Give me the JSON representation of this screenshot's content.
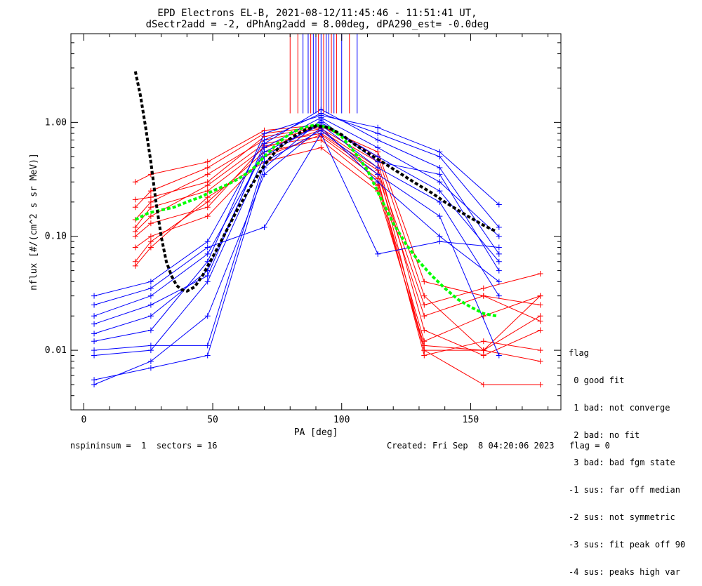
{
  "title_line1": "EPD Electrons EL-B, 2021-08-12/11:45:46 - 11:51:41 UT,",
  "title_line2": "dSectr2add = -2, dPhAng2add = 8.00deg, dPA290_est=  -0.0deg",
  "legend": {
    "title": "flag",
    "items": [
      " 0 good fit",
      " 1 bad: not converge",
      " 2 bad: no fit",
      " 3 bad: bad fgm state",
      "-1 sus: far off median",
      "-2 sus: not symmetric",
      "-3 sus: fit peak off 90",
      "-4 sus: peaks high var"
    ]
  },
  "footer": {
    "left": "nspininsum =  1  sectors = 16",
    "right": "Created: Fri Sep  8 04:20:06 2023   flag = 0"
  },
  "colors": {
    "red": "#ff0000",
    "blue": "#0000ff",
    "green": "#00ff00",
    "black": "#000000"
  },
  "chart_data": {
    "type": "line",
    "xlabel": "PA [deg]",
    "ylabel": "nflux [#/(cm^2 s sr MeV)]",
    "xlim": [
      -5,
      185
    ],
    "ylim": [
      0.003,
      6.0
    ],
    "ylog": true,
    "xticks": [
      0,
      50,
      100,
      150
    ],
    "yticks": [
      0.01,
      0.1,
      1.0
    ],
    "ytick_labels": [
      "0.01",
      "0.10",
      "1.00"
    ],
    "grid": false,
    "legend_position": "right",
    "marker": "+",
    "red_series": [
      {
        "x": [
          20,
          26,
          48,
          70,
          92,
          114,
          132,
          155,
          177
        ],
        "y": [
          0.12,
          0.18,
          0.25,
          0.6,
          0.85,
          0.4,
          0.01,
          0.01,
          0.02
        ]
      },
      {
        "x": [
          20,
          26,
          48,
          70,
          92,
          114,
          132,
          155,
          177
        ],
        "y": [
          0.21,
          0.22,
          0.3,
          0.75,
          0.9,
          0.3,
          0.012,
          0.02,
          0.03
        ]
      },
      {
        "x": [
          20,
          26,
          48,
          70,
          92,
          114,
          132,
          155,
          177
        ],
        "y": [
          0.08,
          0.1,
          0.15,
          0.5,
          0.78,
          0.35,
          0.02,
          0.03,
          0.025
        ]
      },
      {
        "x": [
          20,
          26,
          48,
          70,
          92,
          114,
          132,
          155,
          177
        ],
        "y": [
          0.3,
          0.35,
          0.45,
          0.85,
          0.95,
          0.5,
          0.03,
          0.01,
          0.008
        ]
      },
      {
        "x": [
          20,
          26,
          48,
          70,
          92,
          114,
          132,
          155,
          177
        ],
        "y": [
          0.14,
          0.2,
          0.35,
          0.7,
          0.88,
          0.45,
          0.015,
          0.009,
          0.015
        ]
      },
      {
        "x": [
          20,
          26,
          48,
          70,
          92,
          114,
          132,
          155,
          177
        ],
        "y": [
          0.06,
          0.09,
          0.2,
          0.55,
          0.7,
          0.28,
          0.01,
          0.005,
          0.005
        ]
      },
      {
        "x": [
          20,
          26,
          48,
          70,
          92,
          114,
          132,
          155,
          177
        ],
        "y": [
          0.11,
          0.15,
          0.28,
          0.65,
          0.8,
          0.38,
          0.025,
          0.035,
          0.047
        ]
      },
      {
        "x": [
          20,
          26,
          48,
          70,
          92,
          114,
          132,
          155,
          177
        ],
        "y": [
          0.055,
          0.08,
          0.22,
          0.45,
          0.6,
          0.25,
          0.011,
          0.01,
          0.03
        ]
      },
      {
        "x": [
          20,
          26,
          48,
          70,
          92,
          114,
          132,
          155,
          177
        ],
        "y": [
          0.18,
          0.25,
          0.4,
          0.8,
          0.92,
          0.55,
          0.04,
          0.03,
          0.018
        ]
      },
      {
        "x": [
          20,
          26,
          48,
          70,
          92,
          114,
          132,
          155,
          177
        ],
        "y": [
          0.1,
          0.13,
          0.18,
          0.62,
          0.75,
          0.32,
          0.009,
          0.012,
          0.01
        ]
      }
    ],
    "blue_series": [
      {
        "x": [
          4,
          26,
          48,
          70,
          92,
          114,
          138,
          161
        ],
        "y": [
          0.014,
          0.02,
          0.05,
          0.6,
          1.1,
          0.6,
          0.3,
          0.1
        ]
      },
      {
        "x": [
          4,
          26,
          48,
          70,
          92,
          114,
          138,
          161
        ],
        "y": [
          0.03,
          0.04,
          0.09,
          0.7,
          1.2,
          0.8,
          0.5,
          0.12
        ]
      },
      {
        "x": [
          4,
          26,
          48,
          70,
          92,
          114,
          138,
          161
        ],
        "y": [
          0.009,
          0.01,
          0.04,
          0.5,
          1.0,
          0.5,
          0.25,
          0.06
        ]
      },
      {
        "x": [
          4,
          26,
          48,
          70,
          92,
          114,
          138,
          161
        ],
        "y": [
          0.005,
          0.008,
          0.02,
          0.35,
          0.9,
          0.3,
          0.1,
          0.04
        ]
      },
      {
        "x": [
          4,
          26,
          48,
          70,
          92,
          114,
          138,
          161
        ],
        "y": [
          0.012,
          0.015,
          0.06,
          0.8,
          1.15,
          0.9,
          0.55,
          0.19
        ]
      },
      {
        "x": [
          4,
          26,
          48,
          70,
          92,
          114,
          138,
          161
        ],
        "y": [
          0.02,
          0.03,
          0.07,
          0.55,
          0.95,
          0.4,
          0.2,
          0.03
        ]
      },
      {
        "x": [
          4,
          26,
          48,
          70,
          92,
          114,
          138,
          161
        ],
        "y": [
          0.01,
          0.011,
          0.011,
          0.45,
          0.85,
          0.35,
          0.15,
          0.009
        ]
      },
      {
        "x": [
          4,
          26,
          48,
          70,
          92,
          114,
          138,
          161
        ],
        "y": [
          0.025,
          0.035,
          0.08,
          0.12,
          0.8,
          0.07,
          0.09,
          0.08
        ]
      },
      {
        "x": [
          4,
          26,
          48,
          70,
          92,
          114,
          138,
          161
        ],
        "y": [
          0.0055,
          0.007,
          0.009,
          0.4,
          1.05,
          0.45,
          0.35,
          0.05
        ]
      },
      {
        "x": [
          4,
          26,
          48,
          70,
          92,
          114,
          138,
          161
        ],
        "y": [
          0.017,
          0.025,
          0.045,
          0.65,
          1.3,
          0.7,
          0.4,
          0.07
        ]
      }
    ],
    "green_fit": {
      "x": [
        20,
        25,
        30,
        35,
        40,
        45,
        50,
        55,
        60,
        65,
        70,
        75,
        80,
        85,
        90,
        95,
        100,
        105,
        110,
        115,
        120,
        125,
        130,
        135,
        140,
        145,
        150,
        155,
        160
      ],
      "y": [
        0.14,
        0.16,
        0.17,
        0.18,
        0.2,
        0.22,
        0.25,
        0.28,
        0.32,
        0.38,
        0.5,
        0.65,
        0.8,
        0.9,
        0.95,
        0.9,
        0.75,
        0.55,
        0.38,
        0.22,
        0.13,
        0.085,
        0.06,
        0.045,
        0.035,
        0.028,
        0.024,
        0.021,
        0.02
      ]
    },
    "black_fit": {
      "x": [
        20,
        22,
        24,
        26,
        28,
        30,
        32,
        34,
        36,
        38,
        40,
        43,
        46,
        49,
        52,
        56,
        60,
        65,
        70,
        75,
        80,
        85,
        90,
        95,
        100,
        105,
        110,
        115,
        120,
        125,
        130,
        135,
        140,
        145,
        150,
        155,
        160
      ],
      "y": [
        2.8,
        1.7,
        0.9,
        0.45,
        0.2,
        0.1,
        0.06,
        0.045,
        0.037,
        0.034,
        0.033,
        0.036,
        0.045,
        0.06,
        0.08,
        0.12,
        0.18,
        0.28,
        0.42,
        0.58,
        0.72,
        0.84,
        0.93,
        0.9,
        0.78,
        0.64,
        0.54,
        0.46,
        0.39,
        0.33,
        0.28,
        0.24,
        0.2,
        0.17,
        0.145,
        0.125,
        0.11
      ]
    },
    "vertical_lines": {
      "x": [
        80,
        83,
        85,
        87,
        88,
        89,
        90,
        91,
        92,
        93,
        94,
        95,
        96,
        97,
        98,
        100,
        103,
        106
      ],
      "color": [
        "red",
        "red",
        "blue",
        "blue",
        "red",
        "blue",
        "blue",
        "red",
        "blue",
        "red",
        "blue",
        "blue",
        "red",
        "blue",
        "red",
        "blue",
        "red",
        "blue"
      ],
      "y_from": 1.2
    }
  }
}
